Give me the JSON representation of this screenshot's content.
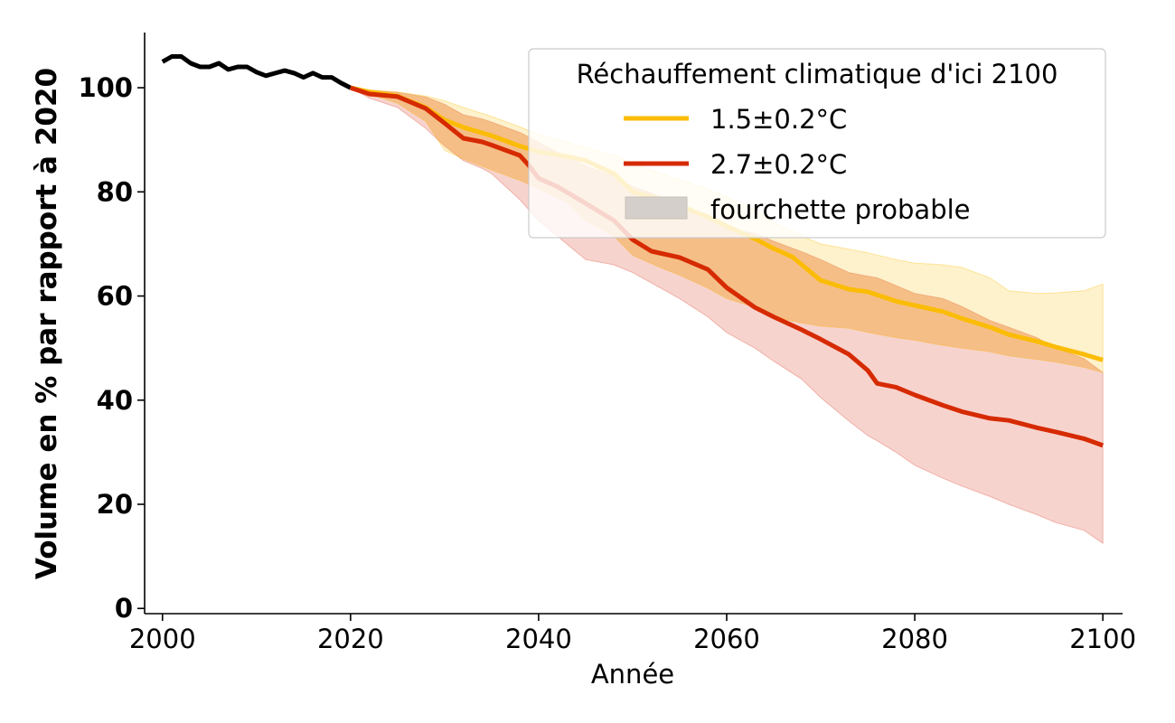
{
  "chart_data": {
    "type": "line",
    "title": "",
    "xlabel": "Année",
    "ylabel": "Volume en % par rapport à 2020",
    "xlim": [
      1998.1,
      2102.1
    ],
    "ylim": [
      -1,
      110.6
    ],
    "xticks": [
      2000,
      2020,
      2040,
      2060,
      2080,
      2100
    ],
    "xtick_labels": [
      "2000",
      "2020",
      "2040",
      "2060",
      "2080",
      "2100"
    ],
    "yticks": [
      0,
      20,
      40,
      60,
      80,
      100
    ],
    "ytick_labels": [
      "0",
      "20",
      "40",
      "60",
      "80",
      "100"
    ],
    "grid": false,
    "legend": {
      "title": "Réchauffement climatique d'ici 2100",
      "placement": "top-right",
      "entries": [
        {
          "label": "1.5±0.2°C",
          "kind": "line",
          "color": "#fbbc05"
        },
        {
          "label": "2.7±0.2°C",
          "kind": "line",
          "color": "#d62a00"
        },
        {
          "label": "fourchette probable",
          "kind": "patch",
          "color": "#d4cfca"
        }
      ]
    },
    "historical": {
      "name": "observed",
      "color": "#000000",
      "x": [
        2000,
        2001,
        2002,
        2003,
        2004,
        2005,
        2006,
        2007,
        2008,
        2009,
        2010,
        2011,
        2012,
        2013,
        2014,
        2015,
        2016,
        2017,
        2018,
        2019,
        2020
      ],
      "y": [
        105,
        106,
        106,
        104.7,
        104,
        104,
        104.7,
        103.5,
        104,
        104,
        103,
        102.3,
        102.8,
        103.3,
        102.8,
        102,
        102.8,
        102,
        102,
        100.9,
        100
      ]
    },
    "series": [
      {
        "name": "1.5±0.2°C",
        "color": "#fbbc05",
        "band_color": "#fbbc05",
        "x": [
          2020,
          2022,
          2025,
          2028,
          2030,
          2032,
          2035,
          2038,
          2040,
          2043,
          2045,
          2048,
          2050,
          2053,
          2055,
          2058,
          2060,
          2063,
          2065,
          2067,
          2068,
          2070,
          2073,
          2075,
          2078,
          2080,
          2083,
          2085,
          2088,
          2090,
          2093,
          2095,
          2098,
          2100
        ],
        "y": [
          100,
          99.2,
          98.4,
          96.2,
          93.8,
          92.4,
          90.8,
          88.8,
          87.7,
          86.8,
          86,
          83.5,
          80,
          78.5,
          77.3,
          75.2,
          73.4,
          71,
          69.1,
          67.5,
          66,
          63,
          61.3,
          60.8,
          59,
          58.2,
          57,
          55.7,
          54,
          52.6,
          51.3,
          50.2,
          48.8,
          47.7
        ],
        "lower": [
          100,
          98.8,
          97,
          93.5,
          88,
          86.3,
          84.2,
          82.2,
          80.6,
          78,
          74.5,
          71.5,
          67.8,
          65.4,
          64,
          61.5,
          59.5,
          57.8,
          56,
          55.2,
          54.8,
          54.2,
          53.8,
          53,
          52,
          51.5,
          50.5,
          50,
          49.3,
          48.5,
          47.8,
          47.3,
          46.3,
          45.3
        ],
        "upper": [
          100,
          99.6,
          99.2,
          98.4,
          97.5,
          96.2,
          94.5,
          92.5,
          91,
          89.5,
          88.5,
          87,
          85.5,
          83.5,
          82.3,
          80.5,
          79,
          76.5,
          74,
          72.5,
          71.5,
          70,
          69,
          68.3,
          67,
          66.3,
          66,
          65.5,
          63.5,
          61,
          60.5,
          60.6,
          61,
          62.3
        ]
      },
      {
        "name": "2.7±0.2°C",
        "color": "#d62a00",
        "band_color": "#e8766a",
        "x": [
          2020,
          2022,
          2025,
          2028,
          2030,
          2032,
          2034,
          2035,
          2038,
          2039,
          2040,
          2042,
          2045,
          2048,
          2050,
          2052,
          2055,
          2058,
          2060,
          2063,
          2065,
          2068,
          2070,
          2073,
          2075,
          2076,
          2078,
          2080,
          2083,
          2085,
          2088,
          2090,
          2093,
          2095,
          2098,
          2100
        ],
        "y": [
          100,
          98.8,
          98.3,
          96,
          93.2,
          90.3,
          89.6,
          89,
          87,
          85,
          82.6,
          81,
          77.8,
          74.5,
          70.8,
          68.6,
          67.4,
          65.1,
          61.6,
          57.8,
          56,
          53.5,
          51.7,
          48.8,
          45.7,
          43.2,
          42.5,
          41,
          39,
          37.8,
          36.5,
          36.1,
          34.7,
          33.9,
          32.6,
          31.3
        ],
        "lower": [
          100,
          98,
          96.2,
          92.2,
          88.8,
          86,
          84.5,
          83.5,
          78.5,
          76.5,
          74.5,
          71.5,
          67,
          66,
          64.5,
          62.5,
          59.5,
          56,
          53,
          50,
          47.5,
          44,
          40.5,
          36,
          33.2,
          32.2,
          30,
          27.5,
          25,
          23.5,
          21.5,
          20,
          18,
          16.5,
          15,
          12.5
        ],
        "upper": [
          100,
          99.5,
          99.1,
          98.2,
          96.8,
          94.8,
          94,
          93.4,
          91.4,
          90.5,
          89.5,
          87.6,
          85,
          83,
          81,
          79.8,
          77.5,
          75,
          73,
          72,
          70.5,
          68.5,
          67,
          64.5,
          63.8,
          63.5,
          62,
          60.5,
          59.5,
          58,
          55.3,
          54,
          52,
          50,
          48,
          45.3
        ]
      }
    ],
    "overlap_band_note": "orange where bands overlap"
  }
}
